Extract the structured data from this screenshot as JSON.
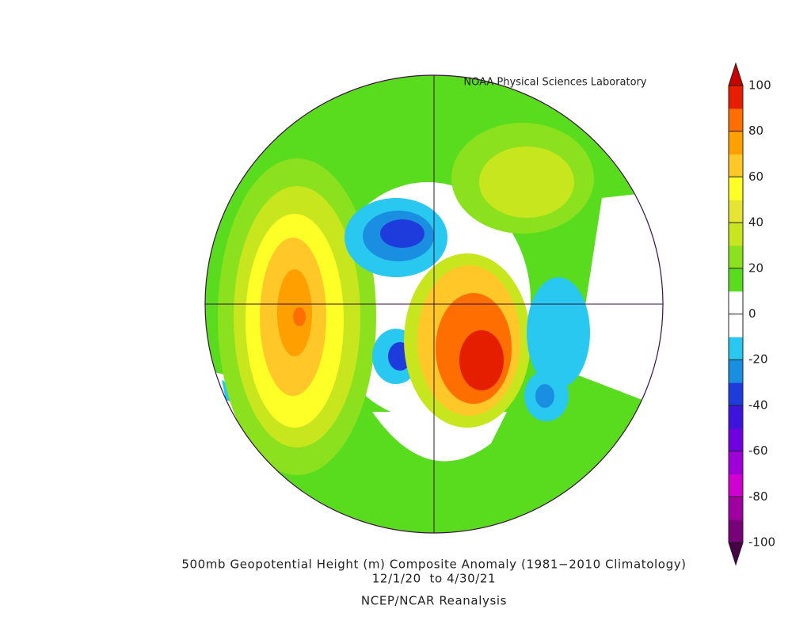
{
  "header": {
    "title": "NOAA Physical Sciences Laboratory"
  },
  "caption": {
    "lines": [
      "500mb Geopotential Height (m) Composite Anomaly (1981−2010 Climatology)",
      "12/1/20  to 4/30/21",
      "NCEP/NCAR Reanalysis"
    ]
  },
  "colorbar": {
    "ticks": [
      100,
      80,
      60,
      40,
      20,
      0,
      -20,
      -40,
      -60,
      -80,
      -100
    ],
    "band_colors": [
      "#780078",
      "#a000a0",
      "#d000d0",
      "#a000d8",
      "#7000e0",
      "#3c14dc",
      "#1e3cdc",
      "#1a8ee0",
      "#28c8f0",
      "#ffffff",
      "#ffffff",
      "#5adc1e",
      "#8ce11e",
      "#c8e61e",
      "#e6e632",
      "#ffff28",
      "#ffc828",
      "#ffa000",
      "#ff6e00",
      "#e61e00"
    ],
    "over_color": "#c80000",
    "under_color": "#460046"
  }
}
